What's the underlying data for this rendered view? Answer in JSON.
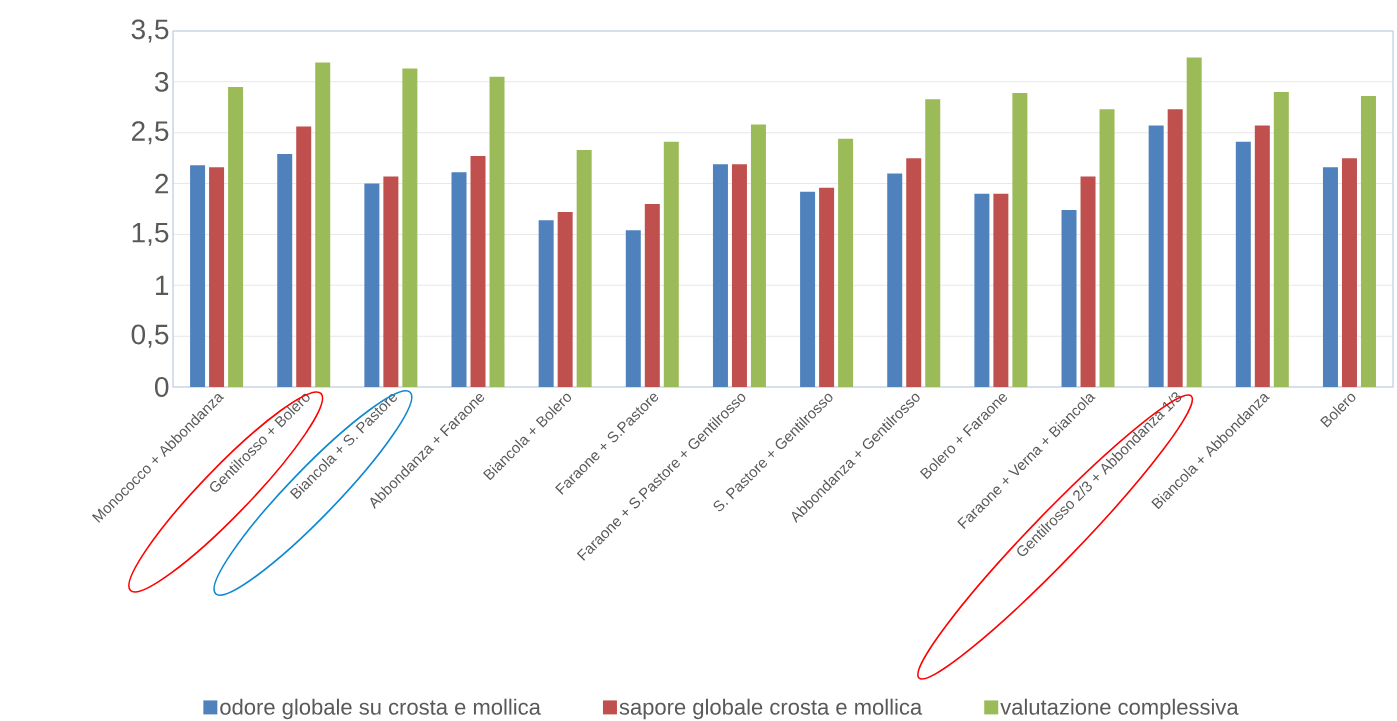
{
  "chart_data": {
    "type": "bar",
    "categories": [
      "Monococco + Abbondanza",
      "Gentilrosso + Bolero",
      "Biancola + S. Pastore",
      "Abbondanza + Faraone",
      "Biancola + Bolero",
      "Faraone + S.Pastore",
      "Faraone + S.Pastore + Gentilrosso",
      "S. Pastore + Gentilrosso",
      "Abbondanza + Gentilrosso",
      "Bolero + Faraone",
      "Faraone + Verna + Biancola",
      "Gentilrosso 2/3 + Abbondanza 1/3",
      "Biancola + Abbondanza",
      "Bolero"
    ],
    "series": [
      {
        "name": "odore globale su crosta e mollica",
        "color": "#4f81bd",
        "values": [
          2.18,
          2.29,
          2.0,
          2.11,
          1.64,
          1.54,
          2.19,
          1.92,
          2.1,
          1.9,
          1.74,
          2.57,
          2.41,
          2.16
        ]
      },
      {
        "name": "sapore globale crosta e mollica",
        "color": "#c0504d",
        "values": [
          2.16,
          2.56,
          2.07,
          2.27,
          1.72,
          1.8,
          2.19,
          1.96,
          2.25,
          1.9,
          2.07,
          2.73,
          2.57,
          2.25
        ]
      },
      {
        "name": "valutazione complessiva",
        "color": "#9bbb59",
        "values": [
          2.95,
          3.19,
          3.13,
          3.05,
          2.33,
          2.41,
          2.58,
          2.44,
          2.83,
          2.89,
          2.73,
          3.24,
          2.9,
          2.86
        ]
      }
    ],
    "ylim": [
      0,
      3.5
    ],
    "yticks": [
      0,
      {
        "value": 0.5,
        "label": "0,5"
      },
      1,
      {
        "value": 1.5,
        "label": "1,5"
      },
      2,
      {
        "value": 2.5,
        "label": "2,5"
      },
      3,
      {
        "value": 3.5,
        "label": "3,5"
      }
    ],
    "grid": "y",
    "legend": "bottom"
  }
}
